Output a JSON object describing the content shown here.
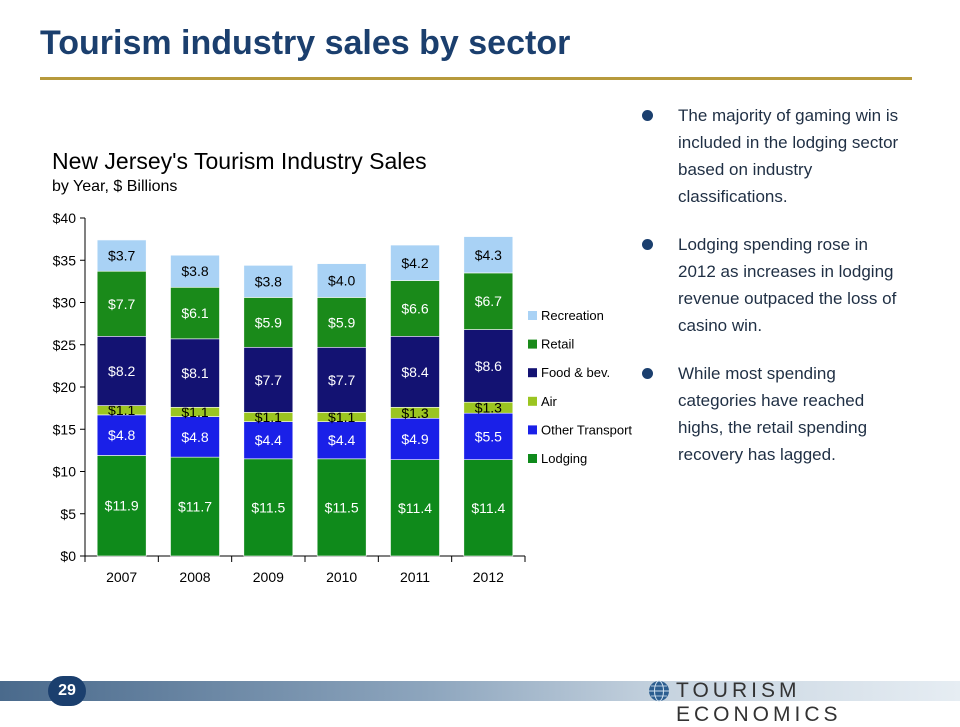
{
  "slide": {
    "title": "Tourism industry sales by sector",
    "page_number": "29",
    "brand": "TOURISM ECONOMICS"
  },
  "bullets": [
    "The majority of gaming win is included in the lodging sector based on industry classifications.",
    "Lodging spending rose in 2012 as increases in lodging revenue outpaced the loss of casino win.",
    "While most spending categories have reached highs, the retail spending recovery has lagged."
  ],
  "chart_data": {
    "type": "bar",
    "stacked": true,
    "title": "New Jersey's Tourism Industry Sales",
    "subtitle": "by Year, $ Billions",
    "categories": [
      "2007",
      "2008",
      "2009",
      "2010",
      "2011",
      "2012"
    ],
    "ylim": [
      0,
      40
    ],
    "yticks": [
      0,
      5,
      10,
      15,
      20,
      25,
      30,
      35,
      40
    ],
    "ytick_labels": [
      "$0",
      "$5",
      "$10",
      "$15",
      "$20",
      "$25",
      "$30",
      "$35",
      "$40"
    ],
    "grid": false,
    "legend_position": "right",
    "series": [
      {
        "name": "Lodging",
        "color": "#0f8a1b",
        "values": [
          11.9,
          11.7,
          11.5,
          11.5,
          11.4,
          11.4
        ],
        "labels": [
          "$11.9",
          "$11.7",
          "$11.5",
          "$11.5",
          "$11.4",
          "$11.4"
        ]
      },
      {
        "name": "Other Transport",
        "color": "#1a20e8",
        "values": [
          4.8,
          4.8,
          4.4,
          4.4,
          4.9,
          5.5
        ],
        "labels": [
          "$4.8",
          "$4.8",
          "$4.4",
          "$4.4",
          "$4.9",
          "$5.5"
        ]
      },
      {
        "name": "Air",
        "color": "#9bc521",
        "values": [
          1.1,
          1.1,
          1.1,
          1.1,
          1.3,
          1.3
        ],
        "labels": [
          "$1.1",
          "$1.1",
          "$1.1",
          "$1.1",
          "$1.3",
          "$1.3"
        ]
      },
      {
        "name": "Food & bev.",
        "color": "#131272",
        "values": [
          8.2,
          8.1,
          7.7,
          7.7,
          8.4,
          8.6
        ],
        "labels": [
          "$8.2",
          "$8.1",
          "$7.7",
          "$7.7",
          "$8.4",
          "$8.6"
        ]
      },
      {
        "name": "Retail",
        "color": "#1a8a1a",
        "values": [
          7.7,
          6.1,
          5.9,
          5.9,
          6.6,
          6.7
        ],
        "labels": [
          "$7.7",
          "$6.1",
          "$5.9",
          "$5.9",
          "$6.6",
          "$6.7"
        ]
      },
      {
        "name": "Recreation",
        "color": "#a9d2f5",
        "values": [
          3.7,
          3.8,
          3.8,
          4.0,
          4.2,
          4.3
        ],
        "labels": [
          "$3.7",
          "$3.8",
          "$3.8",
          "$4.0",
          "$4.2",
          "$4.3"
        ]
      }
    ],
    "legend_order": [
      "Recreation",
      "Retail",
      "Food & bev.",
      "Air",
      "Other Transport",
      "Lodging"
    ]
  }
}
